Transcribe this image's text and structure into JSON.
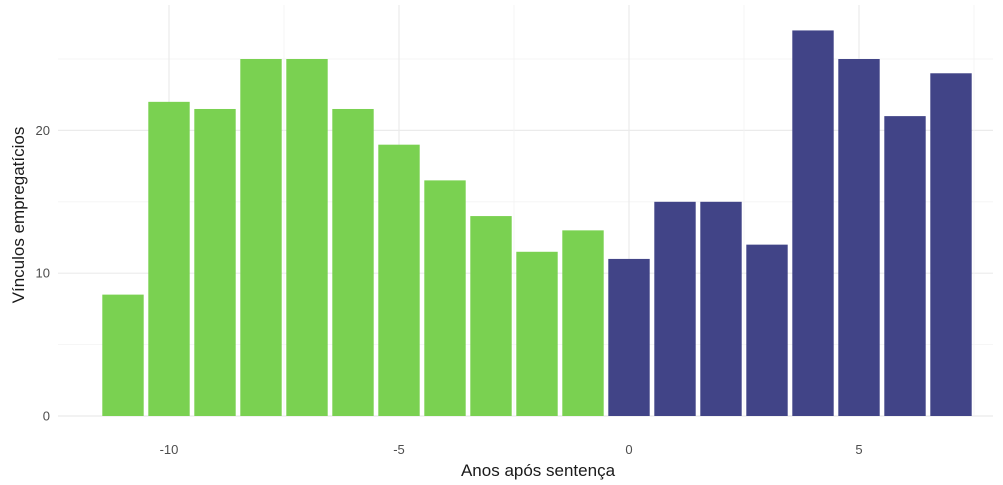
{
  "chart_data": {
    "type": "bar",
    "title": "",
    "xlabel": "Anos após sentença",
    "ylabel": "Vínculos empregatícios",
    "x": [
      -11,
      -10,
      -9,
      -8,
      -7,
      -6,
      -5,
      -4,
      -3,
      -2,
      -1,
      0,
      1,
      2,
      3,
      4,
      5,
      6,
      7
    ],
    "values": [
      8.5,
      22,
      21.5,
      25,
      25,
      21.5,
      19,
      16.5,
      14,
      11.5,
      13,
      11,
      15,
      15,
      12,
      27,
      25,
      21,
      24
    ],
    "xlim": [
      -12,
      7.6
    ],
    "ylim": [
      0,
      28
    ],
    "xticks": [
      -10,
      -5,
      0,
      5
    ],
    "yticks": [
      0,
      10,
      20
    ],
    "xtick_labels": [
      "-10",
      "-5",
      "0",
      "5"
    ],
    "ytick_labels": [
      "0",
      "10",
      "20"
    ],
    "grid": true,
    "legend": "none",
    "colors": {
      "before": "#7AD151",
      "after": "#414487",
      "grid_major": "#ebebeb",
      "grid_minor": "#f3f3f3"
    }
  }
}
